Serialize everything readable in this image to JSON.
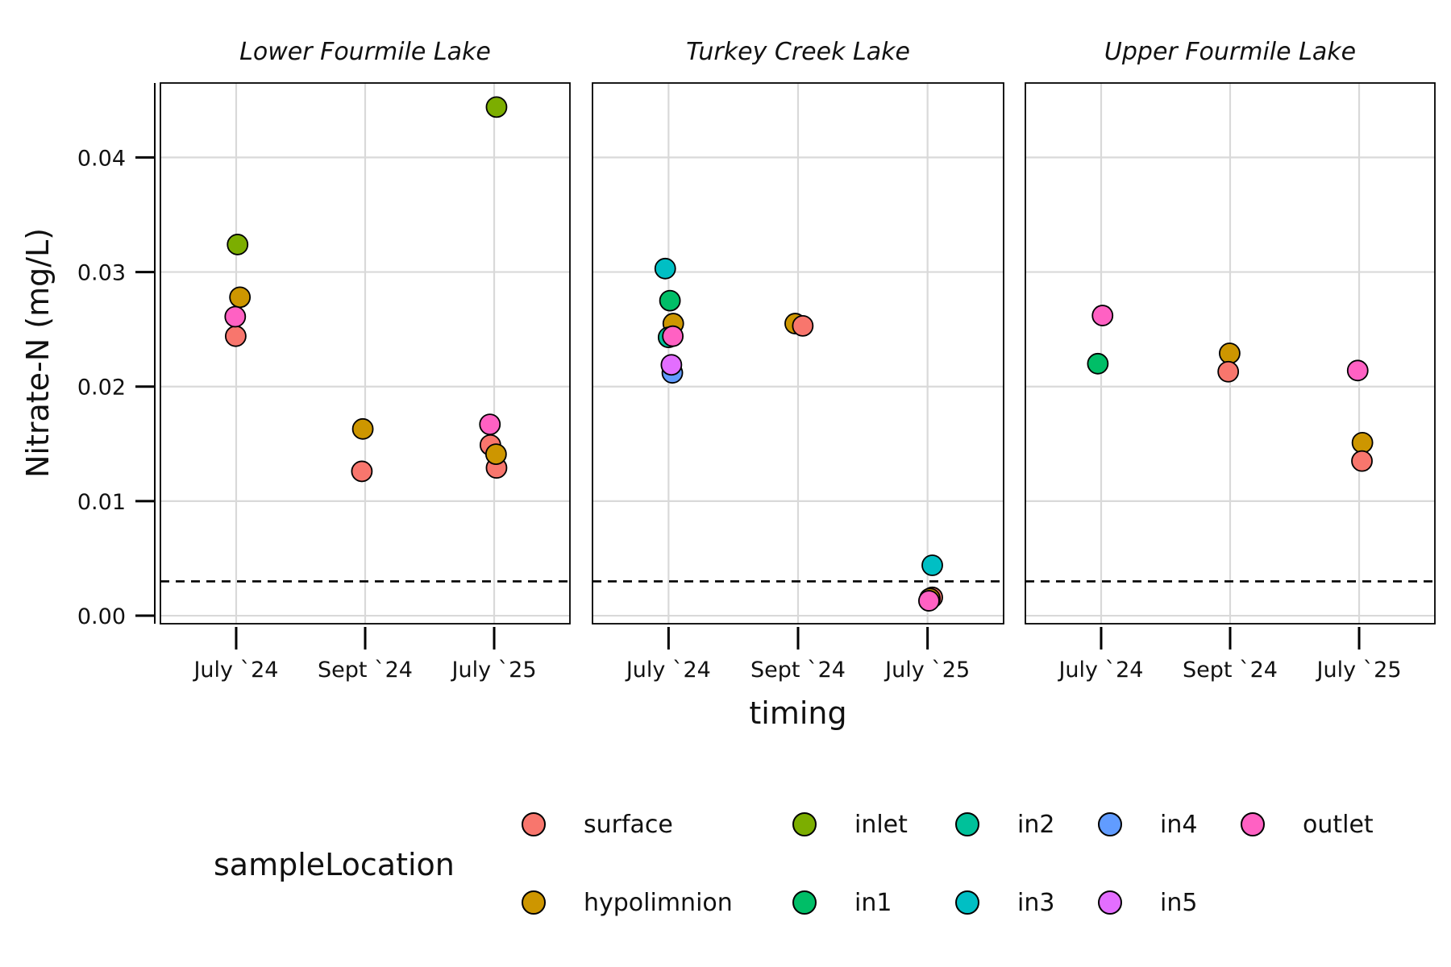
{
  "chart_data": {
    "type": "scatter",
    "facets": [
      "Lower Fourmile Lake",
      "Turkey Creek Lake",
      "Upper Fourmile Lake"
    ],
    "categories": [
      "July `24",
      "Sept `24",
      "July `25"
    ],
    "xlabel": "timing",
    "ylabel": "Nitrate-N (mg/L)",
    "ylim": [
      -0.0007,
      0.0465
    ],
    "yticks": [
      0.0,
      0.01,
      0.02,
      0.03,
      0.04
    ],
    "ytick_labels": [
      "0.00",
      "0.01",
      "0.02",
      "0.03",
      "0.04"
    ],
    "reference_line": {
      "y": 0.003,
      "style": "dashed"
    },
    "grid": true,
    "legend": {
      "title": "sampleLocation",
      "position": "bottom",
      "entries": [
        {
          "name": "surface",
          "color": "#F8766D"
        },
        {
          "name": "hypolimnion",
          "color": "#CD9600"
        },
        {
          "name": "inlet",
          "color": "#7CAE00"
        },
        {
          "name": "in1",
          "color": "#00BE67"
        },
        {
          "name": "in2",
          "color": "#00C19A"
        },
        {
          "name": "in3",
          "color": "#00BFC4"
        },
        {
          "name": "in4",
          "color": "#619CFF"
        },
        {
          "name": "in5",
          "color": "#E36EFF"
        },
        {
          "name": "outlet",
          "color": "#FF61C3"
        }
      ]
    },
    "points": [
      {
        "facet": "Lower Fourmile Lake",
        "x": "July `24",
        "location": "surface",
        "y": 0.0244,
        "jitter": -0.01
      },
      {
        "facet": "Lower Fourmile Lake",
        "x": "July `24",
        "location": "hypolimnion",
        "y": 0.0278,
        "jitter": 0.08
      },
      {
        "facet": "Lower Fourmile Lake",
        "x": "July `24",
        "location": "inlet",
        "y": 0.0324,
        "jitter": 0.03
      },
      {
        "facet": "Lower Fourmile Lake",
        "x": "July `24",
        "location": "outlet",
        "y": 0.0261,
        "jitter": -0.02
      },
      {
        "facet": "Lower Fourmile Lake",
        "x": "Sept `24",
        "location": "surface",
        "y": 0.0126,
        "jitter": -0.07
      },
      {
        "facet": "Lower Fourmile Lake",
        "x": "Sept `24",
        "location": "hypolimnion",
        "y": 0.0163,
        "jitter": -0.05
      },
      {
        "facet": "Lower Fourmile Lake",
        "x": "July `25",
        "location": "surface",
        "y": 0.0149,
        "jitter": -0.08
      },
      {
        "facet": "Lower Fourmile Lake",
        "x": "July `25",
        "location": "surface",
        "y": 0.0129,
        "jitter": 0.05
      },
      {
        "facet": "Lower Fourmile Lake",
        "x": "July `25",
        "location": "hypolimnion",
        "y": 0.0141,
        "jitter": 0.04
      },
      {
        "facet": "Lower Fourmile Lake",
        "x": "July `25",
        "location": "inlet",
        "y": 0.0444,
        "jitter": 0.05
      },
      {
        "facet": "Lower Fourmile Lake",
        "x": "July `25",
        "location": "outlet",
        "y": 0.0167,
        "jitter": -0.09
      },
      {
        "facet": "Turkey Creek Lake",
        "x": "July `24",
        "location": "in3",
        "y": 0.0303,
        "jitter": -0.07
      },
      {
        "facet": "Turkey Creek Lake",
        "x": "July `24",
        "location": "in1",
        "y": 0.0275,
        "jitter": 0.03
      },
      {
        "facet": "Turkey Creek Lake",
        "x": "July `24",
        "location": "hypolimnion",
        "y": 0.0255,
        "jitter": 0.1
      },
      {
        "facet": "Turkey Creek Lake",
        "x": "July `24",
        "location": "in2",
        "y": 0.0243,
        "jitter": 0.0
      },
      {
        "facet": "Turkey Creek Lake",
        "x": "July `24",
        "location": "in4",
        "y": 0.0212,
        "jitter": 0.08
      },
      {
        "facet": "Turkey Creek Lake",
        "x": "July `24",
        "location": "in5",
        "y": 0.0219,
        "jitter": 0.06
      },
      {
        "facet": "Turkey Creek Lake",
        "x": "July `24",
        "location": "outlet",
        "y": 0.0244,
        "jitter": 0.09
      },
      {
        "facet": "Turkey Creek Lake",
        "x": "Sept `24",
        "location": "hypolimnion",
        "y": 0.0255,
        "jitter": -0.06
      },
      {
        "facet": "Turkey Creek Lake",
        "x": "Sept `24",
        "location": "surface",
        "y": 0.0253,
        "jitter": 0.1
      },
      {
        "facet": "Turkey Creek Lake",
        "x": "July `25",
        "location": "in3",
        "y": 0.0044,
        "jitter": 0.1
      },
      {
        "facet": "Turkey Creek Lake",
        "x": "July `25",
        "location": "surface",
        "y": 0.0016,
        "jitter": 0.1
      },
      {
        "facet": "Turkey Creek Lake",
        "x": "July `25",
        "location": "hypolimnion",
        "y": 0.0015,
        "jitter": 0.05
      },
      {
        "facet": "Turkey Creek Lake",
        "x": "July `25",
        "location": "outlet",
        "y": 0.0013,
        "jitter": 0.03
      },
      {
        "facet": "Upper Fourmile Lake",
        "x": "July `24",
        "location": "in1",
        "y": 0.022,
        "jitter": -0.07
      },
      {
        "facet": "Upper Fourmile Lake",
        "x": "July `24",
        "location": "outlet",
        "y": 0.0262,
        "jitter": 0.03
      },
      {
        "facet": "Upper Fourmile Lake",
        "x": "Sept `24",
        "location": "hypolimnion",
        "y": 0.0229,
        "jitter": -0.01
      },
      {
        "facet": "Upper Fourmile Lake",
        "x": "Sept `24",
        "location": "surface",
        "y": 0.0213,
        "jitter": -0.04
      },
      {
        "facet": "Upper Fourmile Lake",
        "x": "July `25",
        "location": "outlet",
        "y": 0.0214,
        "jitter": -0.03
      },
      {
        "facet": "Upper Fourmile Lake",
        "x": "July `25",
        "location": "hypolimnion",
        "y": 0.0151,
        "jitter": 0.07
      },
      {
        "facet": "Upper Fourmile Lake",
        "x": "July `25",
        "location": "surface",
        "y": 0.0135,
        "jitter": 0.06
      }
    ]
  }
}
